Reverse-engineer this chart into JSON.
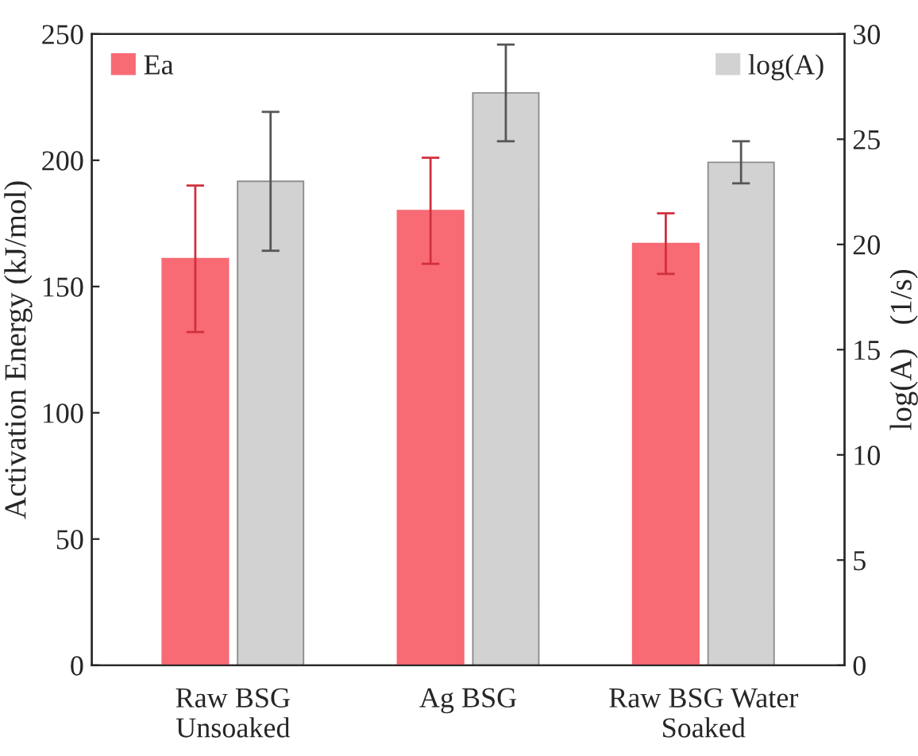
{
  "chart_data": {
    "type": "bar",
    "xlabel": null,
    "ylabel": "Activation Energy (kJ/mol)",
    "y2label": "log(A)   (1/s)",
    "categories": [
      "Raw BSG\nUnsoaked",
      "Ag BSG",
      "Raw BSG Water\nSoaked"
    ],
    "series": [
      {
        "name": "Ea",
        "color": "#f86a74",
        "values": [
          161,
          180,
          167
        ],
        "errors": [
          29,
          21,
          12
        ]
      },
      {
        "name": "log(A)",
        "color": "#d2d2d2",
        "axis": "y2",
        "values": [
          23.0,
          27.2,
          23.9
        ],
        "errors": [
          3.3,
          2.3,
          1.0
        ]
      }
    ],
    "ylim": [
      0,
      250
    ],
    "yticks": [
      0,
      50,
      100,
      150,
      200,
      250
    ],
    "y2lim": [
      0,
      30
    ],
    "y2ticks": [
      0,
      5,
      10,
      15,
      20,
      25,
      30
    ],
    "legend": "top",
    "grid": false
  }
}
